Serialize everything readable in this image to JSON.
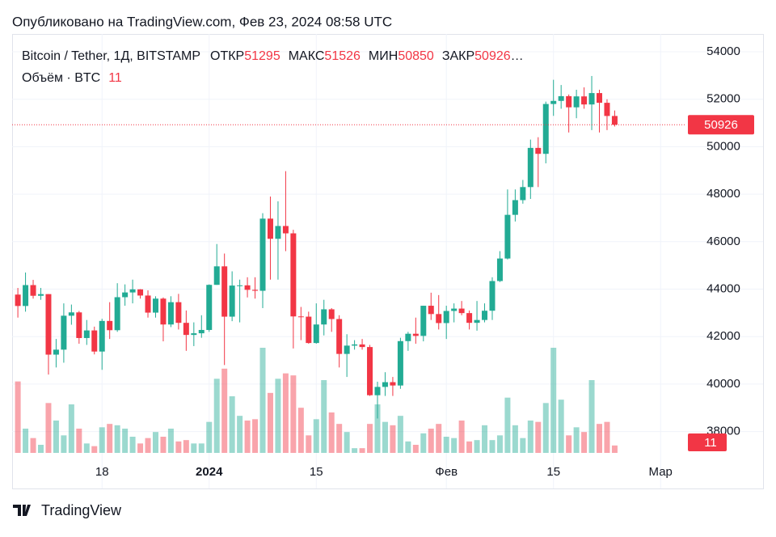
{
  "header": "Опубликовано на TradingView.com, Фев 23, 2024 08:58 UTC",
  "footer": "TradingView",
  "chart_data": {
    "type": "candlestick",
    "symbol": "Bitcoin / Tether, 1Д, BITSTAMP",
    "ohlc_labels": [
      "ОТКР",
      "МАКС",
      "МИН",
      "ЗАКР"
    ],
    "truncation": "…",
    "volume_label": "Объём · BTC",
    "categories": [
      null,
      null,
      null,
      null,
      null,
      null,
      null,
      null,
      null,
      null,
      null,
      null,
      null,
      null,
      null,
      null,
      null,
      null,
      null,
      null,
      null,
      null,
      null,
      null,
      null,
      null,
      null,
      null,
      null,
      null,
      null,
      null,
      null,
      null,
      null,
      null,
      null,
      null,
      null,
      null,
      null,
      null,
      null,
      null,
      null,
      null,
      null,
      null,
      null,
      null,
      null,
      null,
      null,
      null,
      null,
      null,
      null,
      null,
      null,
      null,
      null,
      null,
      null,
      null,
      null,
      null,
      null,
      null,
      null,
      null,
      null,
      null,
      null,
      null,
      null,
      null,
      null,
      null,
      null
    ],
    "open": [
      43770,
      43290,
      44170,
      43720,
      43790,
      41240,
      41450,
      42880,
      43020,
      41940,
      42260,
      41370,
      42660,
      42270,
      43660,
      43860,
      43990,
      43730,
      43010,
      43600,
      42510,
      43450,
      42580,
      42070,
      42140,
      42280,
      44180,
      44960,
      42840,
      44150,
      44160,
      43970,
      43930,
      46970,
      46120,
      46660,
      46350,
      42850,
      42840,
      41730,
      42510,
      43150,
      42740,
      41270,
      41620,
      41670,
      41560,
      39530,
      39880,
      40080,
      39940,
      41810,
      42120,
      42030,
      43300,
      42950,
      42570,
      43080,
      43180,
      42990,
      42580,
      42700,
      43090,
      44340,
      45290,
      47130,
      47750,
      48300,
      49950,
      49700,
      51800,
      51930,
      52130,
      51660,
      52120,
      51780,
      52260,
      51850,
      51295
    ],
    "high": [
      44050,
      44700,
      44390,
      44050,
      43790,
      41900,
      43400,
      43350,
      43080,
      42700,
      42420,
      42750,
      43450,
      44250,
      44200,
      44400,
      44000,
      43950,
      43700,
      43650,
      43700,
      43800,
      43100,
      42600,
      42900,
      44200,
      45900,
      45500,
      44750,
      44400,
      44500,
      44500,
      47200,
      47900,
      47700,
      48970,
      46500,
      43250,
      43050,
      43400,
      43550,
      43200,
      42900,
      42100,
      41850,
      41900,
      41650,
      40100,
      40500,
      40300,
      41950,
      42200,
      42800,
      43300,
      43850,
      43750,
      43300,
      43400,
      43500,
      43100,
      43500,
      43400,
      44500,
      45600,
      48200,
      48200,
      48600,
      50300,
      50400,
      51900,
      52820,
      52600,
      52200,
      52400,
      52500,
      52980,
      52400,
      52000,
      51526
    ],
    "low": [
      42800,
      43050,
      43600,
      43550,
      40400,
      40700,
      40900,
      42500,
      41700,
      41650,
      41250,
      40600,
      41900,
      42200,
      43300,
      43400,
      43600,
      42800,
      42800,
      41800,
      42400,
      42300,
      41400,
      41600,
      41950,
      42200,
      44180,
      40800,
      42650,
      42600,
      43650,
      43600,
      43200,
      44400,
      44400,
      45600,
      41500,
      41850,
      41700,
      41700,
      42050,
      42200,
      40700,
      40300,
      41450,
      41450,
      39500,
      38550,
      39500,
      39500,
      39800,
      41400,
      41700,
      41800,
      42700,
      42300,
      41900,
      42600,
      42900,
      42300,
      42250,
      42600,
      42700,
      44300,
      45250,
      46850,
      47600,
      47800,
      48300,
      49300,
      51300,
      51600,
      50600,
      51200,
      51600,
      50700,
      50600,
      50700,
      50850
    ],
    "close": [
      43290,
      44170,
      43720,
      43790,
      41240,
      41450,
      42880,
      43020,
      41940,
      42260,
      41370,
      42660,
      42270,
      43660,
      43860,
      43990,
      43730,
      43010,
      43600,
      42510,
      43450,
      42580,
      42070,
      42140,
      42280,
      44180,
      44960,
      42840,
      44150,
      44160,
      43970,
      43930,
      46970,
      46120,
      46660,
      46350,
      42850,
      42840,
      41730,
      42510,
      43150,
      42740,
      41270,
      41620,
      41670,
      41560,
      39530,
      39880,
      40080,
      39940,
      41810,
      42120,
      42030,
      43300,
      42950,
      42570,
      43080,
      43180,
      42990,
      42580,
      42700,
      43090,
      44340,
      45290,
      47130,
      47750,
      48300,
      49950,
      49700,
      51800,
      51930,
      52130,
      51660,
      52120,
      51780,
      52260,
      51850,
      51295,
      50926
    ],
    "volume": [
      106,
      36,
      22,
      12,
      74,
      48,
      26,
      72,
      36,
      14,
      10,
      38,
      43,
      41,
      36,
      24,
      14,
      22,
      31,
      24,
      36,
      17,
      19,
      14,
      14,
      46,
      110,
      125,
      84,
      55,
      48,
      50,
      156,
      89,
      110,
      118,
      115,
      67,
      26,
      50,
      108,
      60,
      43,
      31,
      7,
      7,
      43,
      72,
      46,
      41,
      55,
      17,
      12,
      29,
      36,
      43,
      24,
      22,
      48,
      17,
      19,
      41,
      19,
      26,
      82,
      41,
      22,
      48,
      46,
      74,
      156,
      79,
      26,
      38,
      31,
      108,
      43,
      46,
      11
    ],
    "up_color": "#22ab94",
    "down_color": "#f23645",
    "xlim": [
      -0.75,
      87.25
    ],
    "xticks": [
      {
        "value": 11,
        "label": "18"
      },
      {
        "value": 25,
        "label": "2024"
      },
      {
        "value": 39,
        "label": "15"
      },
      {
        "value": 56,
        "label": "Фев"
      },
      {
        "value": 70,
        "label": "15"
      },
      {
        "value": 84,
        "label": "Мар"
      }
    ],
    "ylim": [
      36930,
      54750
    ],
    "yticks": [
      38000,
      40000,
      42000,
      44000,
      46000,
      48000,
      50000,
      52000,
      54000
    ],
    "grid": true
  }
}
